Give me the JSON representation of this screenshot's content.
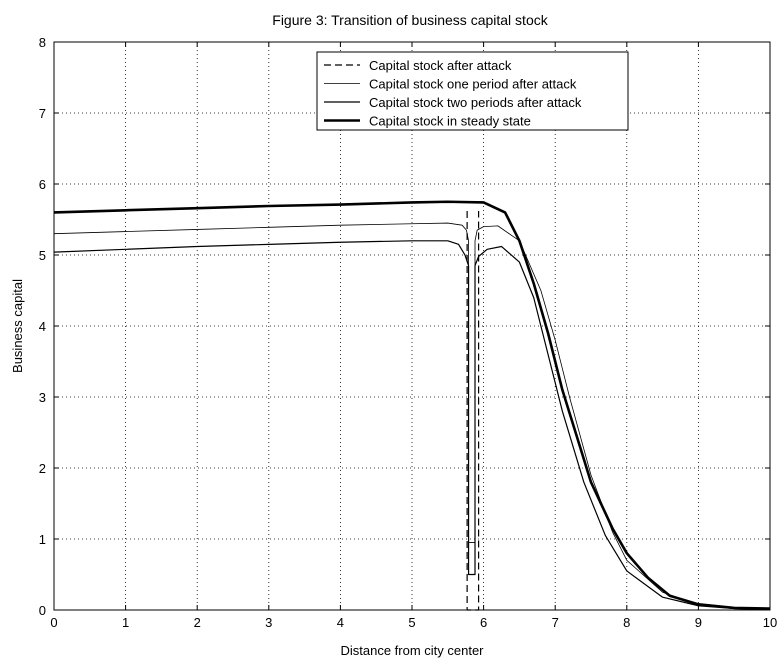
{
  "chart_data": {
    "type": "line",
    "title": "Figure 3: Transition of business capital stock",
    "xlabel": "Distance from city center",
    "ylabel": "Business capital",
    "xlim": [
      0,
      10
    ],
    "ylim": [
      0,
      8
    ],
    "xticks": [
      "0",
      "1",
      "2",
      "3",
      "4",
      "5",
      "6",
      "7",
      "8",
      "9",
      "10"
    ],
    "yticks": [
      "0",
      "1",
      "2",
      "3",
      "4",
      "5",
      "6",
      "7",
      "8"
    ],
    "grid": true,
    "legend_position": "top-center",
    "series": [
      {
        "name": "Capital stock after attack",
        "style": "dashed",
        "x": [
          5.77,
          5.77,
          5.93,
          5.93
        ],
        "y": [
          5.62,
          0,
          0,
          5.62
        ]
      },
      {
        "name": "Capital stock one period after attack",
        "style": "thin",
        "x": [
          0,
          1,
          2,
          3,
          4,
          5,
          5.5,
          5.7,
          5.76,
          5.79,
          5.79,
          5.88,
          5.88,
          5.91,
          6.0,
          6.2,
          6.5,
          6.8,
          7.0,
          7.2,
          7.5,
          7.8,
          8.0,
          8.5,
          9.0,
          9.5,
          10.0
        ],
        "y": [
          5.3,
          5.33,
          5.36,
          5.39,
          5.42,
          5.44,
          5.45,
          5.42,
          5.35,
          5.2,
          0.95,
          0.95,
          5.2,
          5.35,
          5.4,
          5.41,
          5.2,
          4.5,
          3.8,
          3.0,
          1.9,
          1.1,
          0.7,
          0.25,
          0.07,
          0.02,
          0.01
        ]
      },
      {
        "name": "Capital stock two periods after attack",
        "style": "medium",
        "x": [
          0,
          1,
          2,
          3,
          4,
          5,
          5.5,
          5.65,
          5.74,
          5.79,
          5.79,
          5.88,
          5.88,
          5.93,
          6.05,
          6.25,
          6.5,
          6.7,
          6.9,
          7.1,
          7.4,
          7.7,
          8.0,
          8.5,
          9.0,
          9.5,
          10.0
        ],
        "y": [
          5.04,
          5.08,
          5.12,
          5.15,
          5.18,
          5.2,
          5.2,
          5.15,
          5.0,
          4.85,
          0.5,
          0.5,
          4.85,
          4.98,
          5.08,
          5.12,
          4.9,
          4.4,
          3.6,
          2.8,
          1.8,
          1.05,
          0.55,
          0.18,
          0.06,
          0.02,
          0.01
        ]
      },
      {
        "name": "Capital stock in steady state",
        "style": "thick",
        "x": [
          0,
          1,
          2,
          3,
          4,
          5,
          5.5,
          6.0,
          6.3,
          6.5,
          6.7,
          6.9,
          7.1,
          7.3,
          7.5,
          7.8,
          8.0,
          8.3,
          8.6,
          9.0,
          9.5,
          10.0
        ],
        "y": [
          5.6,
          5.63,
          5.66,
          5.69,
          5.71,
          5.74,
          5.75,
          5.74,
          5.6,
          5.2,
          4.6,
          3.9,
          3.1,
          2.45,
          1.8,
          1.15,
          0.8,
          0.45,
          0.2,
          0.08,
          0.03,
          0.02
        ]
      }
    ]
  }
}
